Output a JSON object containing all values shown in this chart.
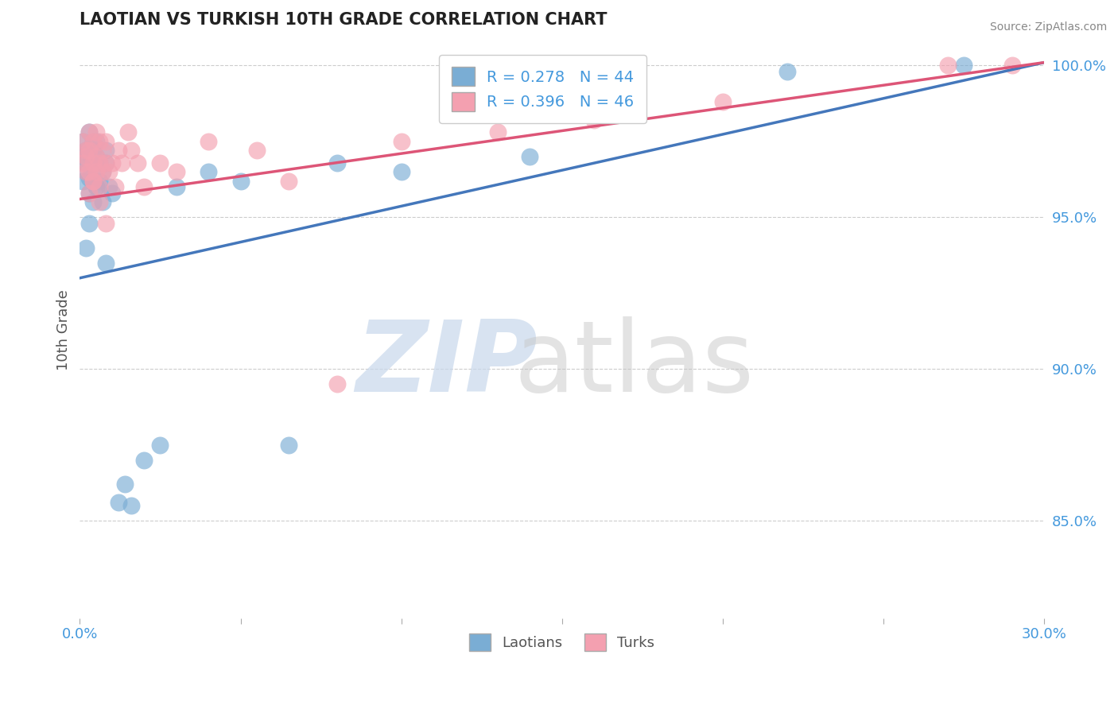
{
  "title": "LAOTIAN VS TURKISH 10TH GRADE CORRELATION CHART",
  "source": "Source: ZipAtlas.com",
  "ylabel": "10th Grade",
  "xlim": [
    0.0,
    0.3
  ],
  "ylim": [
    0.818,
    1.008
  ],
  "xticks": [
    0.0,
    0.05,
    0.1,
    0.15,
    0.2,
    0.25,
    0.3
  ],
  "xticklabels": [
    "0.0%",
    "",
    "",
    "",
    "",
    "",
    "30.0%"
  ],
  "yticks": [
    0.85,
    0.9,
    0.95,
    1.0
  ],
  "yticklabels": [
    "85.0%",
    "90.0%",
    "95.0%",
    "100.0%"
  ],
  "laotian_color": "#7aadd4",
  "turkish_color": "#f4a0b0",
  "laotian_R": 0.278,
  "laotian_N": 44,
  "turkish_R": 0.396,
  "turkish_N": 46,
  "laotian_line_x": [
    0.0,
    0.3
  ],
  "laotian_line_y": [
    0.93,
    1.001
  ],
  "turkish_line_x": [
    0.0,
    0.3
  ],
  "turkish_line_y": [
    0.956,
    1.001
  ],
  "laotian_x": [
    0.001,
    0.001,
    0.001,
    0.002,
    0.002,
    0.002,
    0.003,
    0.003,
    0.003,
    0.003,
    0.004,
    0.004,
    0.004,
    0.004,
    0.005,
    0.005,
    0.005,
    0.006,
    0.006,
    0.007,
    0.007,
    0.008,
    0.008,
    0.009,
    0.01,
    0.012,
    0.014,
    0.016,
    0.02,
    0.025,
    0.03,
    0.04,
    0.05,
    0.065,
    0.08,
    0.1,
    0.14,
    0.22,
    0.275,
    0.002,
    0.003,
    0.004,
    0.005,
    0.008
  ],
  "laotian_y": [
    0.97,
    0.962,
    0.975,
    0.965,
    0.972,
    0.968,
    0.978,
    0.971,
    0.963,
    0.958,
    0.975,
    0.968,
    0.962,
    0.972,
    0.975,
    0.96,
    0.97,
    0.968,
    0.962,
    0.965,
    0.955,
    0.968,
    0.972,
    0.96,
    0.958,
    0.856,
    0.862,
    0.855,
    0.87,
    0.875,
    0.96,
    0.965,
    0.962,
    0.875,
    0.968,
    0.965,
    0.97,
    0.998,
    1.0,
    0.94,
    0.948,
    0.955,
    0.96,
    0.935
  ],
  "turkish_x": [
    0.001,
    0.001,
    0.002,
    0.002,
    0.002,
    0.003,
    0.003,
    0.003,
    0.004,
    0.004,
    0.004,
    0.005,
    0.005,
    0.005,
    0.006,
    0.006,
    0.006,
    0.007,
    0.007,
    0.008,
    0.008,
    0.009,
    0.01,
    0.011,
    0.012,
    0.013,
    0.015,
    0.016,
    0.018,
    0.02,
    0.025,
    0.03,
    0.04,
    0.055,
    0.065,
    0.08,
    0.1,
    0.13,
    0.16,
    0.2,
    0.003,
    0.004,
    0.006,
    0.008,
    0.29,
    0.27
  ],
  "turkish_y": [
    0.975,
    0.968,
    0.972,
    0.965,
    0.97,
    0.978,
    0.972,
    0.965,
    0.975,
    0.968,
    0.962,
    0.978,
    0.97,
    0.965,
    0.975,
    0.968,
    0.96,
    0.972,
    0.965,
    0.975,
    0.968,
    0.965,
    0.968,
    0.96,
    0.972,
    0.968,
    0.978,
    0.972,
    0.968,
    0.96,
    0.968,
    0.965,
    0.975,
    0.972,
    0.962,
    0.895,
    0.975,
    0.978,
    0.982,
    0.988,
    0.958,
    0.962,
    0.955,
    0.948,
    1.0,
    1.0
  ],
  "background_color": "#ffffff",
  "grid_color": "#cccccc",
  "title_color": "#222222",
  "axis_label_color": "#555555",
  "tick_color": "#4499dd",
  "line_blue": "#4477bb",
  "line_pink": "#dd5577"
}
